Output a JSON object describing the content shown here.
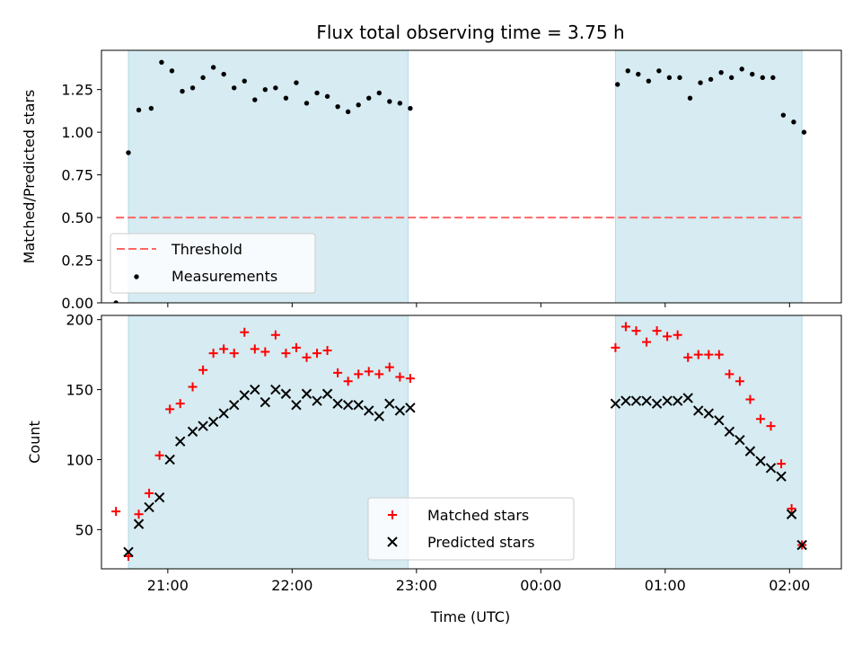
{
  "title": "Flux total observing time = 3.75 h",
  "x_label": "Time (UTC)",
  "x_ticks": [
    "21:00",
    "22:00",
    "23:00",
    "00:00",
    "01:00",
    "02:00"
  ],
  "colors": {
    "shade": "#add8e6",
    "threshold": "#ff6666",
    "measurements": "#000000",
    "matched": "#ff0000",
    "predicted": "#000000"
  },
  "chart_data": [
    {
      "type": "scatter",
      "ylabel": "Matched/Predicted stars",
      "xlim": [
        "20:28",
        "02:25"
      ],
      "ylim": [
        0,
        1.48
      ],
      "y_ticks": [
        "0.00",
        "0.25",
        "0.50",
        "0.75",
        "1.00",
        "1.25"
      ],
      "shaded_intervals": [
        [
          "20:41",
          "22:56"
        ],
        [
          "00:36",
          "02:06"
        ]
      ],
      "threshold": {
        "value": 0.5,
        "x": [
          "20:35",
          "02:06"
        ]
      },
      "legend": {
        "placement": "lower-left",
        "entries": [
          "Threshold",
          "Measurements"
        ]
      },
      "series": [
        {
          "name": "Measurements",
          "marker": "dot",
          "points": [
            [
              "20:35",
              0.0
            ],
            [
              "20:41",
              0.88
            ],
            [
              "20:46",
              1.13
            ],
            [
              "20:52",
              1.14
            ],
            [
              "20:57",
              1.41
            ],
            [
              "21:02",
              1.36
            ],
            [
              "21:07",
              1.24
            ],
            [
              "21:12",
              1.26
            ],
            [
              "21:17",
              1.32
            ],
            [
              "21:22",
              1.38
            ],
            [
              "21:27",
              1.34
            ],
            [
              "21:32",
              1.26
            ],
            [
              "21:37",
              1.3
            ],
            [
              "21:42",
              1.19
            ],
            [
              "21:47",
              1.25
            ],
            [
              "21:52",
              1.26
            ],
            [
              "21:57",
              1.2
            ],
            [
              "22:02",
              1.29
            ],
            [
              "22:07",
              1.17
            ],
            [
              "22:12",
              1.23
            ],
            [
              "22:17",
              1.21
            ],
            [
              "22:22",
              1.15
            ],
            [
              "22:27",
              1.12
            ],
            [
              "22:32",
              1.16
            ],
            [
              "22:37",
              1.2
            ],
            [
              "22:42",
              1.23
            ],
            [
              "22:47",
              1.18
            ],
            [
              "22:52",
              1.17
            ],
            [
              "22:57",
              1.14
            ],
            [
              "00:37",
              1.28
            ],
            [
              "00:42",
              1.36
            ],
            [
              "00:47",
              1.34
            ],
            [
              "00:52",
              1.3
            ],
            [
              "00:57",
              1.36
            ],
            [
              "01:02",
              1.32
            ],
            [
              "01:07",
              1.32
            ],
            [
              "01:12",
              1.2
            ],
            [
              "01:17",
              1.29
            ],
            [
              "01:22",
              1.31
            ],
            [
              "01:27",
              1.35
            ],
            [
              "01:32",
              1.32
            ],
            [
              "01:37",
              1.37
            ],
            [
              "01:42",
              1.34
            ],
            [
              "01:47",
              1.32
            ],
            [
              "01:52",
              1.32
            ],
            [
              "01:57",
              1.1
            ],
            [
              "02:02",
              1.06
            ],
            [
              "02:07",
              1.0
            ]
          ]
        }
      ]
    },
    {
      "type": "scatter",
      "ylabel": "Count",
      "xlim": [
        "20:28",
        "02:25"
      ],
      "ylim": [
        22,
        203
      ],
      "y_ticks": [
        "50",
        "100",
        "150",
        "200"
      ],
      "shaded_intervals": [
        [
          "20:41",
          "22:56"
        ],
        [
          "00:36",
          "02:06"
        ]
      ],
      "legend": {
        "placement": "lower-center",
        "entries": [
          "Matched stars",
          "Predicted stars"
        ]
      },
      "series": [
        {
          "name": "Matched stars",
          "marker": "plus",
          "points": [
            [
              "20:35",
              63
            ],
            [
              "20:41",
              31
            ],
            [
              "20:46",
              61
            ],
            [
              "20:51",
              76
            ],
            [
              "20:56",
              103
            ],
            [
              "21:01",
              136
            ],
            [
              "21:06",
              140
            ],
            [
              "21:12",
              152
            ],
            [
              "21:17",
              164
            ],
            [
              "21:22",
              176
            ],
            [
              "21:27",
              179
            ],
            [
              "21:32",
              176
            ],
            [
              "21:37",
              191
            ],
            [
              "21:42",
              179
            ],
            [
              "21:47",
              177
            ],
            [
              "21:52",
              189
            ],
            [
              "21:57",
              176
            ],
            [
              "22:02",
              180
            ],
            [
              "22:07",
              173
            ],
            [
              "22:12",
              176
            ],
            [
              "22:17",
              178
            ],
            [
              "22:22",
              162
            ],
            [
              "22:27",
              156
            ],
            [
              "22:32",
              161
            ],
            [
              "22:37",
              163
            ],
            [
              "22:42",
              161
            ],
            [
              "22:47",
              166
            ],
            [
              "22:52",
              159
            ],
            [
              "22:57",
              158
            ],
            [
              "00:36",
              180
            ],
            [
              "00:41",
              195
            ],
            [
              "00:46",
              192
            ],
            [
              "00:51",
              184
            ],
            [
              "00:56",
              192
            ],
            [
              "01:01",
              188
            ],
            [
              "01:06",
              189
            ],
            [
              "01:11",
              173
            ],
            [
              "01:16",
              175
            ],
            [
              "01:21",
              175
            ],
            [
              "01:26",
              175
            ],
            [
              "01:31",
              161
            ],
            [
              "01:36",
              156
            ],
            [
              "01:41",
              143
            ],
            [
              "01:46",
              129
            ],
            [
              "01:51",
              124
            ],
            [
              "01:56",
              97
            ],
            [
              "02:01",
              65
            ],
            [
              "02:06",
              39
            ]
          ]
        },
        {
          "name": "Predicted stars",
          "marker": "x",
          "points": [
            [
              "20:41",
              34
            ],
            [
              "20:46",
              54
            ],
            [
              "20:51",
              66
            ],
            [
              "20:56",
              73
            ],
            [
              "21:01",
              100
            ],
            [
              "21:06",
              113
            ],
            [
              "21:12",
              120
            ],
            [
              "21:17",
              124
            ],
            [
              "21:22",
              127
            ],
            [
              "21:27",
              133
            ],
            [
              "21:32",
              139
            ],
            [
              "21:37",
              146
            ],
            [
              "21:42",
              150
            ],
            [
              "21:47",
              141
            ],
            [
              "21:52",
              150
            ],
            [
              "21:57",
              147
            ],
            [
              "22:02",
              139
            ],
            [
              "22:07",
              147
            ],
            [
              "22:12",
              142
            ],
            [
              "22:17",
              147
            ],
            [
              "22:22",
              140
            ],
            [
              "22:27",
              139
            ],
            [
              "22:32",
              139
            ],
            [
              "22:37",
              135
            ],
            [
              "22:42",
              131
            ],
            [
              "22:47",
              140
            ],
            [
              "22:52",
              135
            ],
            [
              "22:57",
              137
            ],
            [
              "00:36",
              140
            ],
            [
              "00:41",
              142
            ],
            [
              "00:46",
              142
            ],
            [
              "00:51",
              142
            ],
            [
              "00:56",
              140
            ],
            [
              "01:01",
              142
            ],
            [
              "01:06",
              142
            ],
            [
              "01:11",
              144
            ],
            [
              "01:16",
              135
            ],
            [
              "01:21",
              133
            ],
            [
              "01:26",
              128
            ],
            [
              "01:31",
              120
            ],
            [
              "01:36",
              114
            ],
            [
              "01:41",
              106
            ],
            [
              "01:46",
              99
            ],
            [
              "01:51",
              94
            ],
            [
              "01:56",
              88
            ],
            [
              "02:01",
              61
            ],
            [
              "02:06",
              39
            ]
          ]
        }
      ]
    }
  ]
}
